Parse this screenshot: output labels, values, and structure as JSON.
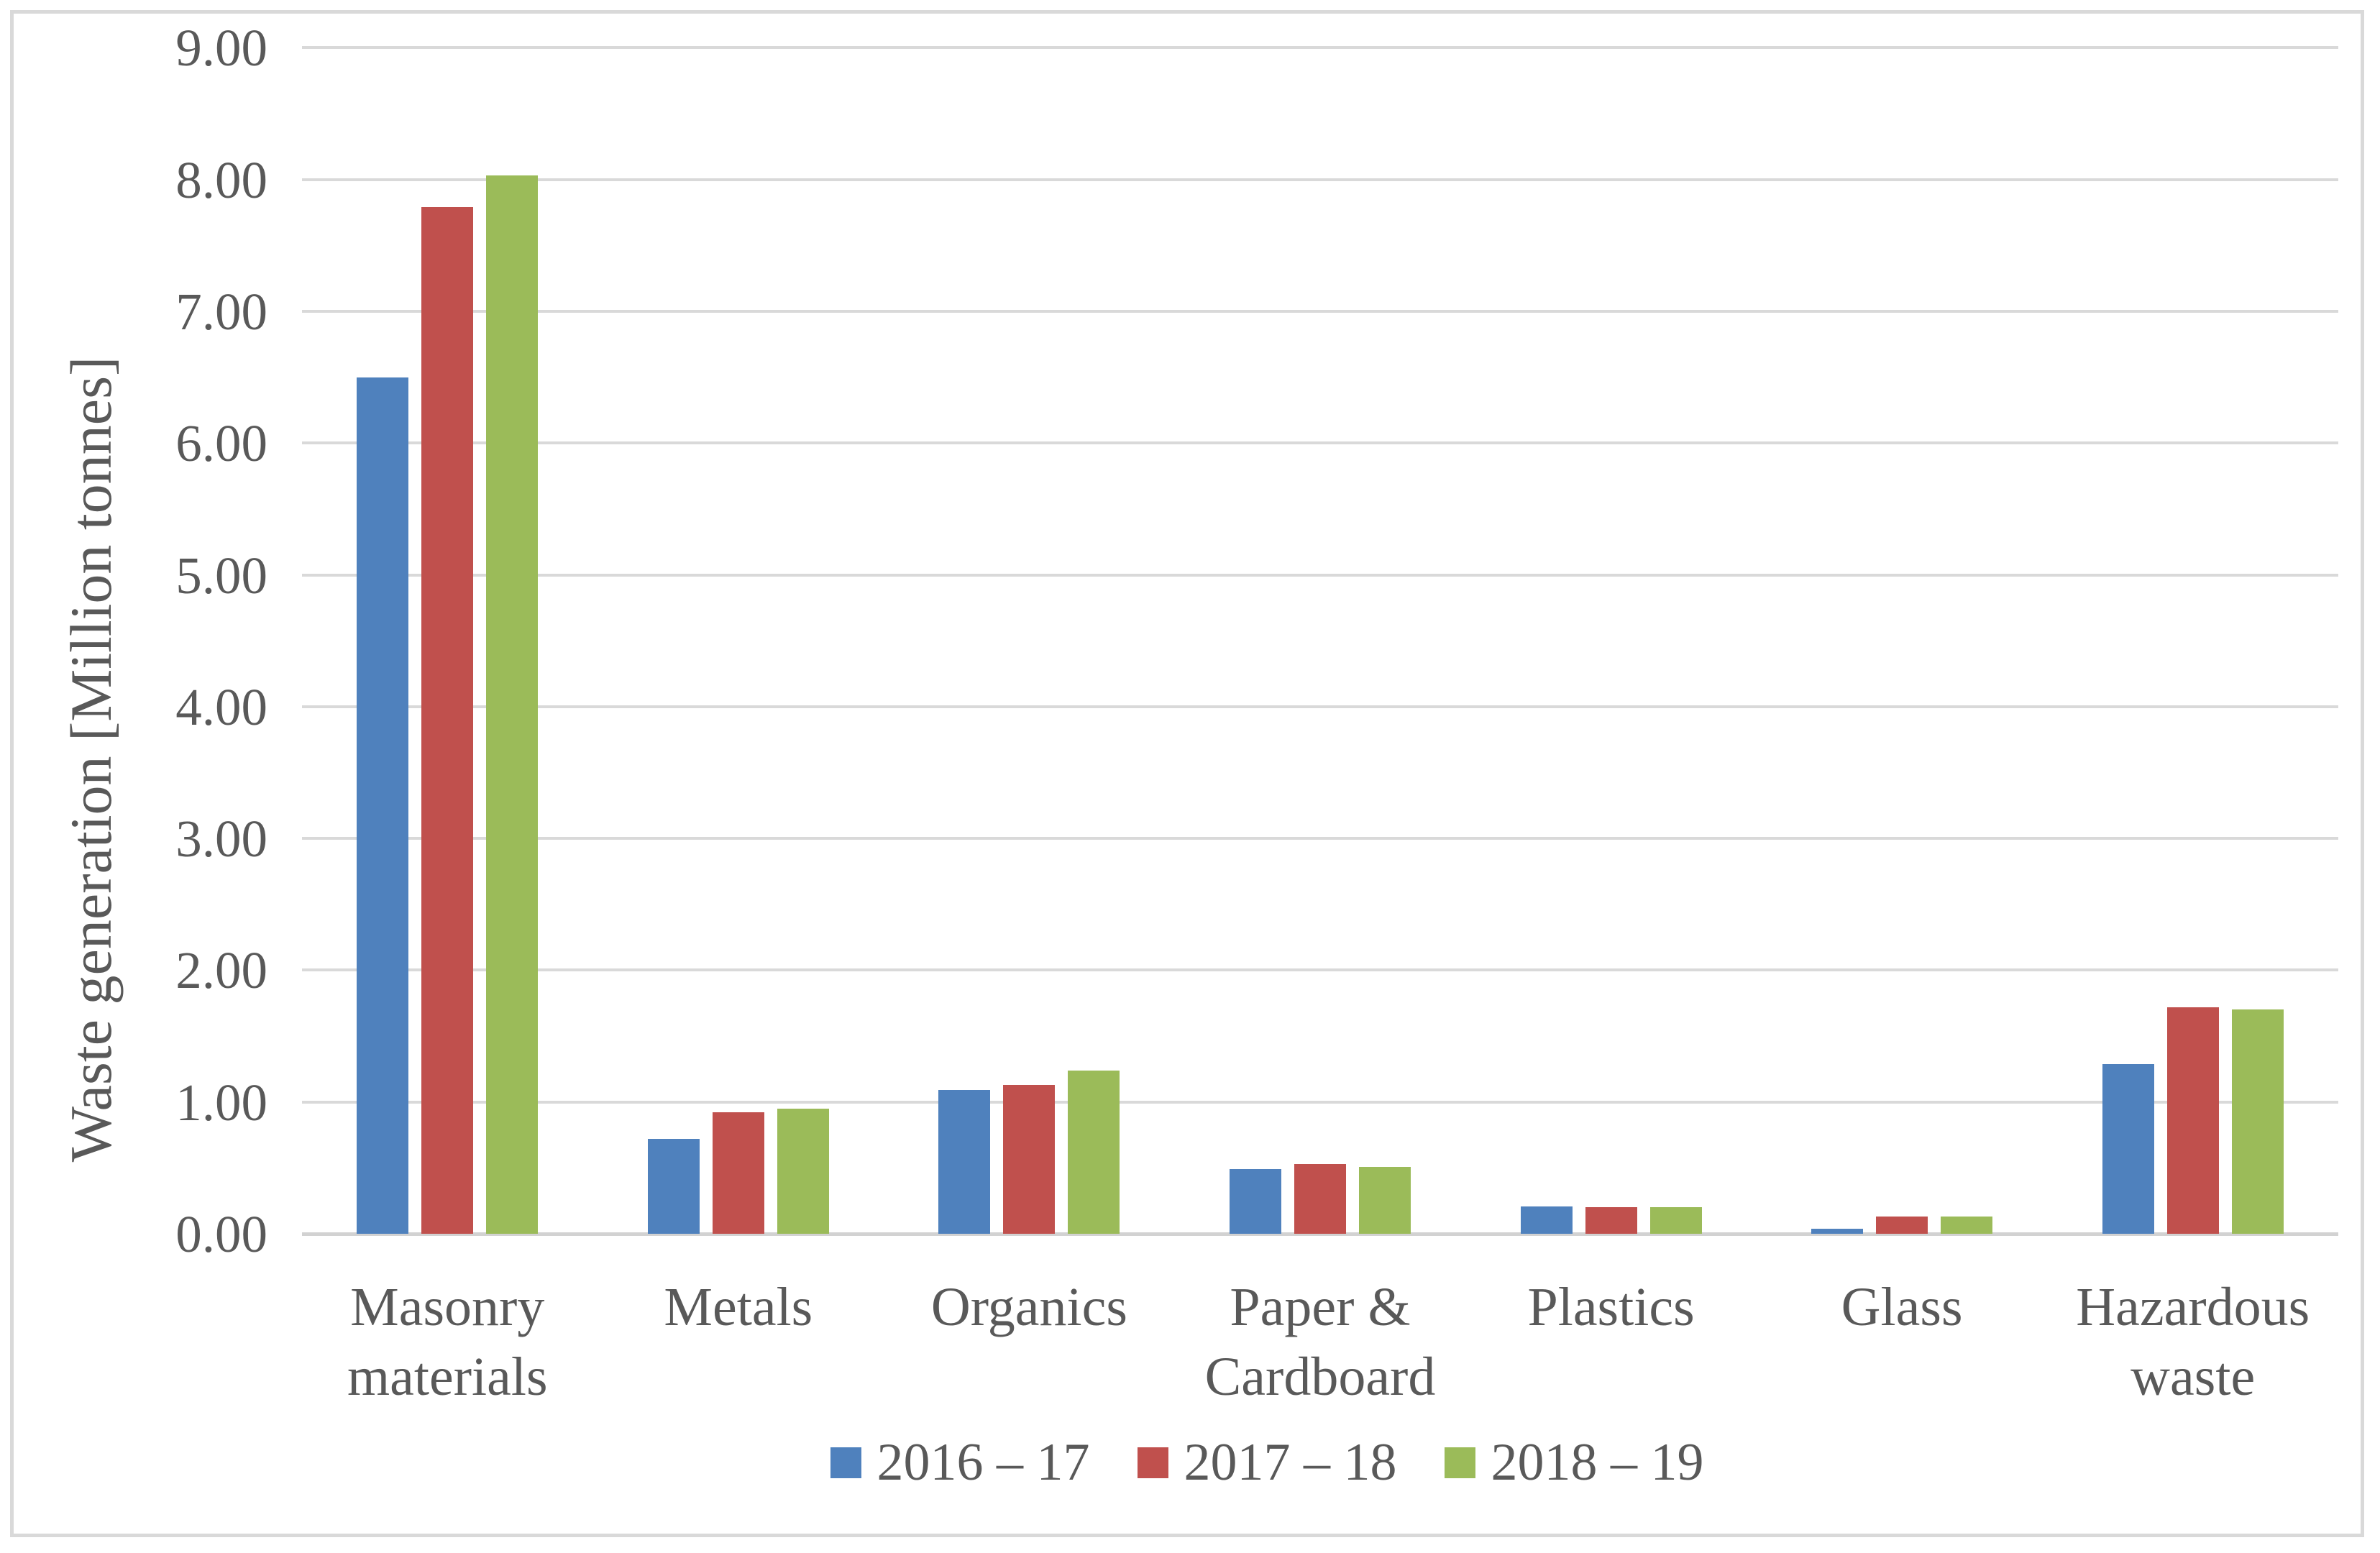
{
  "chart_data": {
    "type": "bar",
    "title": "",
    "categories": [
      "Masonry materials",
      "Metals",
      "Organics",
      "Paper & Cardboard",
      "Plastics",
      "Glass",
      "Hazardous waste"
    ],
    "series": [
      {
        "name": "2016 – 17",
        "color": "#4F81BD",
        "values": [
          6.5,
          0.72,
          1.09,
          0.49,
          0.21,
          0.04,
          1.29
        ]
      },
      {
        "name": "2017 – 18",
        "color": "#C0504D",
        "values": [
          7.79,
          0.92,
          1.13,
          0.53,
          0.2,
          0.13,
          1.72
        ]
      },
      {
        "name": "2018 – 19",
        "color": "#9BBB59",
        "values": [
          8.03,
          0.95,
          1.24,
          0.51,
          0.2,
          0.13,
          1.7
        ]
      }
    ],
    "xlabel": "",
    "ylabel": "Waste generation [Million tonnes]",
    "ylim": [
      0,
      9
    ],
    "ytick_step": 1,
    "ytick_labels": [
      "0.00",
      "1.00",
      "2.00",
      "3.00",
      "4.00",
      "5.00",
      "6.00",
      "7.00",
      "8.00",
      "9.00"
    ],
    "grid": true,
    "legend_position": "bottom"
  },
  "colors": {
    "grid": "#D9D9D9",
    "axis_line": "#D2D2D2",
    "text": "#595959",
    "figure_border": "#D9D9D9",
    "background": "#FFFFFF",
    "series_blue": "#4F81BD",
    "series_red": "#C0504D",
    "series_green": "#9BBB59"
  }
}
